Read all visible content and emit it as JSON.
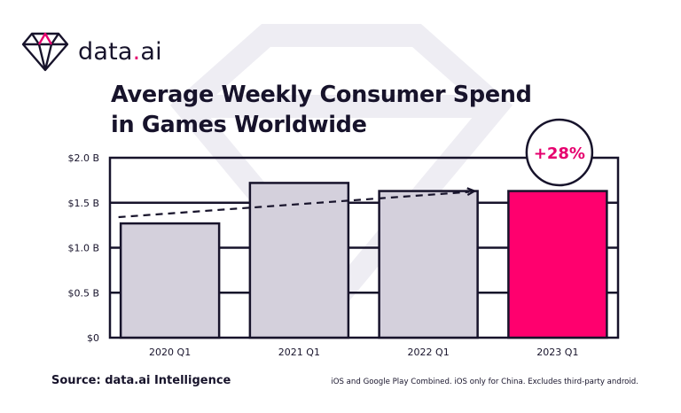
{
  "brand": {
    "name_pre": "data",
    "name_dot": ".",
    "name_post": "ai"
  },
  "colors": {
    "ink": "#17132b",
    "bar_default": "#d4d0dc",
    "bar_highlight": "#ff006e",
    "badge_text": "#e6006e",
    "watermark": "#eeedf3"
  },
  "chart_data": {
    "type": "bar",
    "title": "Average Weekly Consumer Spend in Games Worldwide",
    "title_lines": [
      "Average Weekly Consumer Spend",
      "in Games Worldwide"
    ],
    "categories": [
      "2020 Q1",
      "2021 Q1",
      "2022 Q1",
      "2023 Q1"
    ],
    "values": [
      1.27,
      1.72,
      1.63,
      1.63
    ],
    "highlight_index": 3,
    "y_ticks": [
      0,
      0.5,
      1.0,
      1.5,
      2.0
    ],
    "y_tick_labels": [
      "$0",
      "$0.5 B",
      "$1.0 B",
      "$1.5 B",
      "$2.0 B"
    ],
    "ylim": [
      0,
      2.0
    ],
    "grid": true,
    "trend": {
      "style": "dashed arrow",
      "from_value": 1.34,
      "to_value": 1.63
    },
    "annotation": "+28%"
  },
  "footer": {
    "source": "Source: data.ai Intelligence",
    "note": "iOS and Google Play Combined. iOS only for China. Excludes third-party android."
  }
}
